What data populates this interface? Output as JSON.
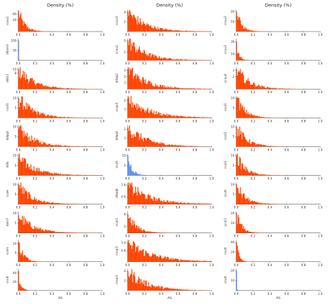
{
  "chart_data": {
    "type": "bar",
    "colors": {
      "primary": "#ff4500",
      "secondary": "#5b8ff9"
    },
    "columns": [
      {
        "title": "Density (%)",
        "xlabel": "AS",
        "xticks": [
          "0.0",
          "0.2",
          "0.4",
          "0.6",
          "0.8",
          "1.0"
        ],
        "panels": [
          {
            "label": "ccuu1",
            "color": "#ff4500",
            "yticks": [
              "40",
              "60"
            ],
            "ymax": 75,
            "peak": 70,
            "decay": 0.07,
            "xmax": 0.9
          },
          {
            "label": "ddam3",
            "color": "#5b8ff9",
            "yticks": [
              "100",
              "50"
            ],
            "ymax": 110,
            "peak": 100,
            "decay": 0.004,
            "xmax": 0.02
          },
          {
            "label": "ddta1",
            "color": "#ff4500",
            "yticks": [
              "10",
              "8"
            ],
            "ymax": 11,
            "peak": 10,
            "decay": 0.18,
            "xmax": 1.0
          },
          {
            "label": "ccut1",
            "color": "#ff4500",
            "yticks": [
              "10",
              "5"
            ],
            "ymax": 11,
            "peak": 10,
            "decay": 0.17,
            "xmax": 1.0
          },
          {
            "label": "ddqq4",
            "color": "#ff4500",
            "yticks": [
              "10",
              "5"
            ],
            "ymax": 11,
            "peak": 9,
            "decay": 0.19,
            "xmax": 1.0
          },
          {
            "label": "ddlu",
            "color": "#ff4500",
            "yticks": [
              "10",
              "5"
            ],
            "ymax": 11,
            "peak": 9,
            "decay": 0.2,
            "xmax": 1.0
          },
          {
            "label": "ccoe",
            "color": "#ff4500",
            "yticks": [
              "10",
              "5"
            ],
            "ymax": 11,
            "peak": 10,
            "decay": 0.15,
            "xmax": 1.0
          },
          {
            "label": "dam7",
            "color": "#ff4500",
            "yticks": [
              "10",
              "5"
            ],
            "ymax": 11,
            "peak": 9,
            "decay": 0.17,
            "xmax": 1.0
          },
          {
            "label": "ccam",
            "color": "#ff4500",
            "yticks": [
              "10",
              "5"
            ],
            "ymax": 12,
            "peak": 11,
            "decay": 0.06,
            "xmax": 1.0
          },
          {
            "label": "ccutt",
            "color": "#ff4500",
            "yticks": [
              "40",
              "20"
            ],
            "ymax": 50,
            "peak": 45,
            "decay": 0.03,
            "xmax": 1.0
          }
        ]
      },
      {
        "title": "Density (%)",
        "xlabel": "AS",
        "xticks": [
          "0.0",
          "0.2",
          "0.4",
          "0.6",
          "0.8",
          "1.0"
        ],
        "panels": [
          {
            "label": "ccuu3",
            "color": "#ff4500",
            "yticks": [
              "4",
              "2"
            ],
            "ymax": 4.5,
            "peak": 4.2,
            "decay": 0.2,
            "xmax": 1.0
          },
          {
            "label": "ccuu1",
            "color": "#ff4500",
            "yticks": [
              "5",
              "2"
            ],
            "ymax": 5.5,
            "peak": 5,
            "decay": 0.2,
            "xmax": 1.0
          },
          {
            "label": "ddqq2",
            "color": "#ff4500",
            "yticks": [
              "3",
              "2",
              "1"
            ],
            "ymax": 3.5,
            "peak": 3.2,
            "decay": 0.22,
            "xmax": 1.0
          },
          {
            "label": "ccup3",
            "color": "#ff4500",
            "yticks": [
              "2",
              "1"
            ],
            "ymax": 2.5,
            "peak": 2.2,
            "decay": 0.25,
            "xmax": 1.0
          },
          {
            "label": "ddqq4",
            "color": "#ff4500",
            "yticks": [
              "2",
              "1"
            ],
            "ymax": 2.5,
            "peak": 2.2,
            "decay": 0.22,
            "xmax": 1.0
          },
          {
            "label": "ccutt",
            "color": "#5b8ff9",
            "yticks": [
              "10",
              "5"
            ],
            "ymax": 11,
            "peak": 10,
            "decay": 0.05,
            "xmax": 0.5
          },
          {
            "label": "ddqq8",
            "color": "#ff4500",
            "yticks": [
              "1.6",
              "0.6"
            ],
            "ymax": 1.8,
            "peak": 1.6,
            "decay": 0.25,
            "xmax": 1.0
          },
          {
            "label": "ccut1",
            "color": "#ff4500",
            "yticks": [
              "6",
              "2"
            ],
            "ymax": 7,
            "peak": 6,
            "decay": 0.1,
            "xmax": 1.0
          },
          {
            "label": "ccup3",
            "color": "#ff4500",
            "yticks": [
              "1.4",
              "0.8"
            ],
            "ymax": 1.6,
            "peak": 1.4,
            "decay": 0.28,
            "xmax": 1.0
          },
          {
            "label": "ccup3",
            "color": "#ff4500",
            "yticks": [
              "4",
              "2"
            ],
            "ymax": 4.5,
            "peak": 4,
            "decay": 0.22,
            "xmax": 1.0
          }
        ]
      },
      {
        "title": "Density (%)",
        "xlabel": "AS",
        "xticks": [
          "0.0",
          "0.2",
          "0.4",
          "0.6",
          "0.8",
          "1.0"
        ],
        "panels": [
          {
            "label": "ccuu3",
            "color": "#ff4500",
            "yticks": [
              "20",
              "10"
            ],
            "ymax": 22,
            "peak": 20,
            "decay": 0.06,
            "xmax": 0.5
          },
          {
            "label": "ccuu3",
            "color": "#ff4500",
            "yticks": [
              "30",
              "10"
            ],
            "ymax": 35,
            "peak": 30,
            "decay": 0.03,
            "xmax": 0.3
          },
          {
            "label": "ccuu4",
            "color": "#ff4500",
            "yticks": [
              "3",
              "2"
            ],
            "ymax": 3.5,
            "peak": 3.2,
            "decay": 0.15,
            "xmax": 0.8
          },
          {
            "label": "ccut1",
            "color": "#ff4500",
            "yticks": [
              "10",
              "5"
            ],
            "ymax": 11,
            "peak": 10,
            "decay": 0.1,
            "xmax": 0.6
          },
          {
            "label": "ccut1",
            "color": "#ff4500",
            "yticks": [
              "10",
              "5"
            ],
            "ymax": 11,
            "peak": 10,
            "decay": 0.12,
            "xmax": 0.6
          },
          {
            "label": "ccut1",
            "color": "#ff4500",
            "yticks": [
              "10",
              "5"
            ],
            "ymax": 11,
            "peak": 10,
            "decay": 0.1,
            "xmax": 0.6
          },
          {
            "label": "ccutt",
            "color": "#ff4500",
            "yticks": [
              "10",
              "5"
            ],
            "ymax": 11,
            "peak": 10,
            "decay": 0.1,
            "xmax": 0.5
          },
          {
            "label": "ccut1",
            "color": "#ff4500",
            "yticks": [
              "20",
              "10"
            ],
            "ymax": 22,
            "peak": 20,
            "decay": 0.06,
            "xmax": 0.5
          },
          {
            "label": "ccutt",
            "color": "#ff4500",
            "yticks": [
              "40",
              "20"
            ],
            "ymax": 45,
            "peak": 40,
            "decay": 0.03,
            "xmax": 0.3
          },
          {
            "label": "ccutt",
            "color": "#5b8ff9",
            "yticks": [
              "20",
              "10"
            ],
            "ymax": 22,
            "peak": 20,
            "decay": 0.006,
            "xmax": 0.05
          }
        ]
      }
    ]
  }
}
